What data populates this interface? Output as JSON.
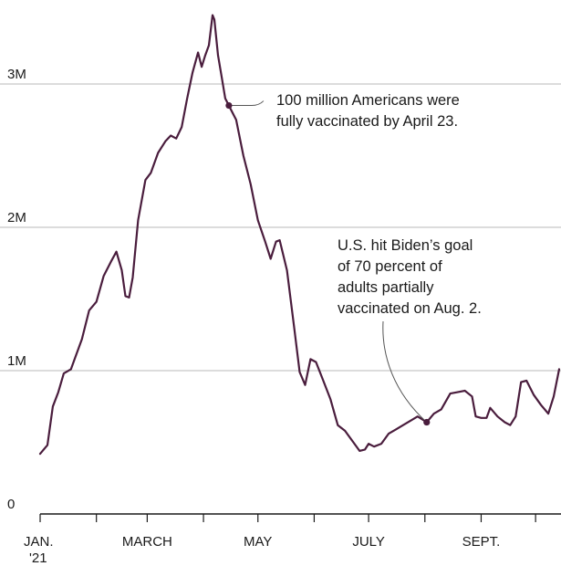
{
  "chart_data": {
    "type": "line",
    "title": "",
    "xlabel": "",
    "ylabel": "",
    "grid": true,
    "ylim": [
      0,
      3500000
    ],
    "y_ticks": [
      {
        "value": 0,
        "label": "0"
      },
      {
        "value": 1000000,
        "label": "1M"
      },
      {
        "value": 2000000,
        "label": "2M"
      },
      {
        "value": 3000000,
        "label": "3M"
      }
    ],
    "x_range": [
      "2021-01-01",
      "2021-10-15"
    ],
    "x_tick_marks": [
      "2021-01-01",
      "2021-02-01",
      "2021-03-01",
      "2021-04-01",
      "2021-05-01",
      "2021-06-01",
      "2021-07-01",
      "2021-08-01",
      "2021-09-01",
      "2021-10-01"
    ],
    "x_tick_labels": [
      {
        "date": "2021-01-01",
        "line1": "JAN.",
        "line2": "'21"
      },
      {
        "date": "2021-03-01",
        "line1": "MARCH",
        "line2": ""
      },
      {
        "date": "2021-05-01",
        "line1": "MAY",
        "line2": ""
      },
      {
        "date": "2021-07-01",
        "line1": "JULY",
        "line2": ""
      },
      {
        "date": "2021-09-01",
        "line1": "SEPT.",
        "line2": ""
      }
    ],
    "series": [
      {
        "color": "#4a1d3d",
        "points": [
          [
            "2021-01-01",
            420000
          ],
          [
            "2021-01-05",
            480000
          ],
          [
            "2021-01-08",
            750000
          ],
          [
            "2021-01-11",
            850000
          ],
          [
            "2021-01-14",
            980000
          ],
          [
            "2021-01-18",
            1010000
          ],
          [
            "2021-01-20",
            1080000
          ],
          [
            "2021-01-24",
            1220000
          ],
          [
            "2021-01-28",
            1420000
          ],
          [
            "2021-02-01",
            1480000
          ],
          [
            "2021-02-05",
            1660000
          ],
          [
            "2021-02-09",
            1760000
          ],
          [
            "2021-02-12",
            1830000
          ],
          [
            "2021-02-15",
            1700000
          ],
          [
            "2021-02-17",
            1520000
          ],
          [
            "2021-02-19",
            1510000
          ],
          [
            "2021-02-21",
            1650000
          ],
          [
            "2021-02-24",
            2050000
          ],
          [
            "2021-02-28",
            2330000
          ],
          [
            "2021-03-03",
            2380000
          ],
          [
            "2021-03-07",
            2520000
          ],
          [
            "2021-03-11",
            2600000
          ],
          [
            "2021-03-14",
            2640000
          ],
          [
            "2021-03-17",
            2620000
          ],
          [
            "2021-03-20",
            2700000
          ],
          [
            "2021-03-23",
            2900000
          ],
          [
            "2021-03-26",
            3080000
          ],
          [
            "2021-03-29",
            3220000
          ],
          [
            "2021-03-31",
            3120000
          ],
          [
            "2021-04-02",
            3200000
          ],
          [
            "2021-04-04",
            3270000
          ],
          [
            "2021-04-06",
            3480000
          ],
          [
            "2021-04-07",
            3450000
          ],
          [
            "2021-04-09",
            3200000
          ],
          [
            "2021-04-11",
            3050000
          ],
          [
            "2021-04-13",
            2900000
          ],
          [
            "2021-04-15",
            2850000
          ],
          [
            "2021-04-19",
            2750000
          ],
          [
            "2021-04-23",
            2500000
          ],
          [
            "2021-04-27",
            2300000
          ],
          [
            "2021-05-01",
            2050000
          ],
          [
            "2021-05-05",
            1900000
          ],
          [
            "2021-05-08",
            1780000
          ],
          [
            "2021-05-11",
            1900000
          ],
          [
            "2021-05-13",
            1910000
          ],
          [
            "2021-05-17",
            1700000
          ],
          [
            "2021-05-21",
            1300000
          ],
          [
            "2021-05-24",
            990000
          ],
          [
            "2021-05-27",
            900000
          ],
          [
            "2021-05-30",
            1080000
          ],
          [
            "2021-06-02",
            1060000
          ],
          [
            "2021-06-06",
            930000
          ],
          [
            "2021-06-10",
            800000
          ],
          [
            "2021-06-14",
            620000
          ],
          [
            "2021-06-18",
            580000
          ],
          [
            "2021-06-22",
            510000
          ],
          [
            "2021-06-26",
            440000
          ],
          [
            "2021-06-29",
            450000
          ],
          [
            "2021-07-01",
            490000
          ],
          [
            "2021-07-04",
            470000
          ],
          [
            "2021-07-08",
            490000
          ],
          [
            "2021-07-12",
            560000
          ],
          [
            "2021-07-16",
            590000
          ],
          [
            "2021-07-20",
            620000
          ],
          [
            "2021-07-24",
            650000
          ],
          [
            "2021-07-28",
            680000
          ],
          [
            "2021-08-02",
            640000
          ],
          [
            "2021-08-06",
            700000
          ],
          [
            "2021-08-10",
            730000
          ],
          [
            "2021-08-15",
            840000
          ],
          [
            "2021-08-19",
            850000
          ],
          [
            "2021-08-23",
            860000
          ],
          [
            "2021-08-27",
            820000
          ],
          [
            "2021-08-29",
            680000
          ],
          [
            "2021-09-01",
            670000
          ],
          [
            "2021-09-04",
            670000
          ],
          [
            "2021-09-06",
            740000
          ],
          [
            "2021-09-10",
            680000
          ],
          [
            "2021-09-14",
            640000
          ],
          [
            "2021-09-17",
            620000
          ],
          [
            "2021-09-20",
            680000
          ],
          [
            "2021-09-23",
            920000
          ],
          [
            "2021-09-26",
            930000
          ],
          [
            "2021-09-30",
            830000
          ],
          [
            "2021-10-04",
            760000
          ],
          [
            "2021-10-08",
            700000
          ],
          [
            "2021-10-11",
            820000
          ],
          [
            "2021-10-14",
            1010000
          ]
        ]
      }
    ],
    "annotations": [
      {
        "date": "2021-04-15",
        "lines": [
          "100 million Americans were",
          "fully vaccinated by April 23."
        ]
      },
      {
        "date": "2021-08-02",
        "lines": [
          "U.S. hit Biden’s goal",
          "of 70 percent of",
          "adults partially",
          "vaccinated on Aug. 2."
        ]
      }
    ]
  }
}
